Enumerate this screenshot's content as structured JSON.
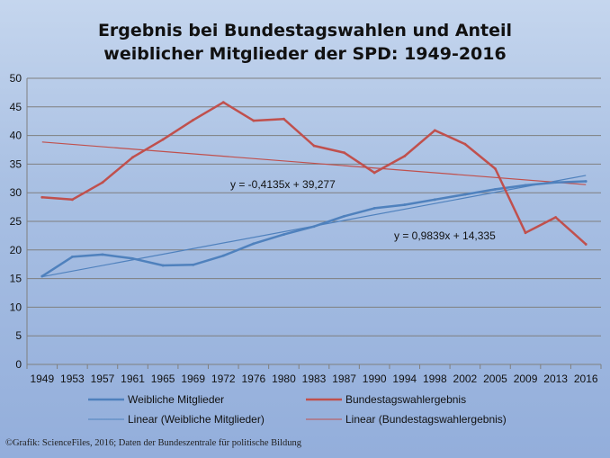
{
  "chart_data": {
    "type": "line",
    "title_lines": [
      "Ergebnis bei Bundestagswahlen und Anteil",
      "weiblicher Mitglieder der SPD: 1949-2016"
    ],
    "x": [
      "1949",
      "1953",
      "1957",
      "1961",
      "1965",
      "1969",
      "1972",
      "1976",
      "1980",
      "1983",
      "1987",
      "1990",
      "1994",
      "1998",
      "2002",
      "2005",
      "2009",
      "2013",
      "2016"
    ],
    "ylim": [
      0,
      50
    ],
    "yticks": [
      "0",
      "5",
      "10",
      "15",
      "20",
      "25",
      "30",
      "35",
      "40",
      "45",
      "50"
    ],
    "grid": true,
    "series": [
      {
        "name": "Weibliche Mitglieder",
        "color": "#4f81bd",
        "values": [
          15.4,
          18.8,
          19.2,
          18.5,
          17.3,
          17.4,
          19.0,
          21.1,
          22.7,
          24.1,
          25.9,
          27.3,
          27.9,
          28.8,
          29.7,
          30.6,
          31.3,
          31.8,
          32.0
        ]
      },
      {
        "name": "Bundestagswahlergebnis",
        "color": "#c0504d",
        "values": [
          29.2,
          28.8,
          31.8,
          36.2,
          39.3,
          42.7,
          45.8,
          42.6,
          42.9,
          38.2,
          37.0,
          33.5,
          36.4,
          40.9,
          38.5,
          34.2,
          23.0,
          25.7,
          21.0
        ]
      }
    ],
    "trendlines": [
      {
        "name": "Linear (Weibliche Mitglieder)",
        "color": "#4f81bd",
        "slope": 0.9839,
        "intercept": 14.335,
        "equation": "y = 0,9839x + 14,335"
      },
      {
        "name": "Linear (Bundestagswahlergebnis)",
        "color": "#c0504d",
        "slope": -0.4135,
        "intercept": 39.277,
        "equation": "y = -0,4135x + 39,277"
      }
    ],
    "legend_position": "bottom"
  },
  "footer": "©Grafik: ScienceFiles, 2016; Daten der Bundeszentrale für politische Bildung"
}
